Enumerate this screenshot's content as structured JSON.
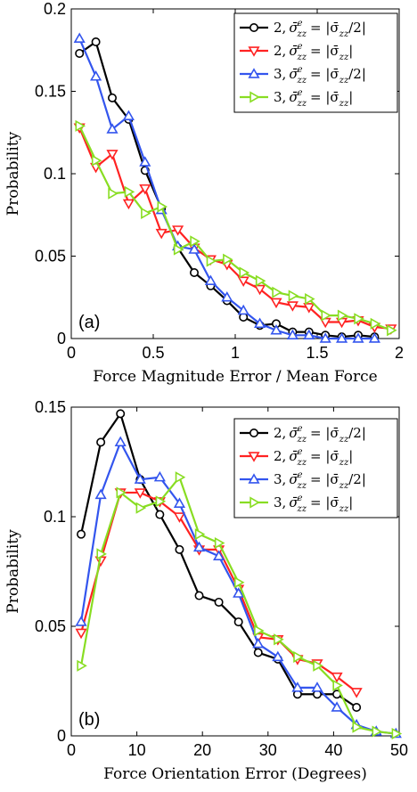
{
  "chart_data": [
    {
      "type": "line",
      "panel_label": "(a)",
      "xlabel": "Force Magnitude Error / Mean Force",
      "ylabel": "Probability",
      "xlim": [
        0,
        2
      ],
      "ylim": [
        0,
        0.2
      ],
      "xticks": [
        "0",
        "0.5",
        "1",
        "1.5",
        "2"
      ],
      "yticks": [
        "0",
        "0.05",
        "0.1",
        "0.15",
        "0.2"
      ],
      "legend_position": "top-right",
      "series": [
        {
          "legend_prefix": "2,",
          "legend_lhs": "σ̄",
          "legend_sup": "e",
          "legend_sub": "zz",
          "legend_eq": "= |σ̄",
          "legend_rhs_sub": "zz",
          "legend_tail": "/2|",
          "color": "#000000",
          "marker": "circle",
          "x": [
            0.05,
            0.15,
            0.25,
            0.35,
            0.45,
            0.55,
            0.65,
            0.75,
            0.85,
            0.95,
            1.05,
            1.15,
            1.25,
            1.35,
            1.45,
            1.55,
            1.65,
            1.75,
            1.85
          ],
          "values": [
            0.173,
            0.18,
            0.146,
            0.133,
            0.102,
            0.079,
            0.055,
            0.04,
            0.032,
            0.023,
            0.013,
            0.008,
            0.009,
            0.004,
            0.004,
            0.002,
            0.001,
            0.002,
            0.001
          ]
        },
        {
          "legend_prefix": "2,",
          "legend_lhs": "σ̄",
          "legend_sup": "e",
          "legend_sub": "zz",
          "legend_eq": "= |σ̄",
          "legend_rhs_sub": "zz",
          "legend_tail": "|",
          "color": "#ff2222",
          "marker": "triangle-down",
          "x": [
            0.05,
            0.15,
            0.25,
            0.35,
            0.45,
            0.55,
            0.65,
            0.75,
            0.85,
            0.95,
            1.05,
            1.15,
            1.25,
            1.35,
            1.45,
            1.55,
            1.65,
            1.75,
            1.85,
            1.95
          ],
          "values": [
            0.128,
            0.104,
            0.112,
            0.082,
            0.091,
            0.064,
            0.066,
            0.055,
            0.048,
            0.045,
            0.035,
            0.03,
            0.022,
            0.02,
            0.019,
            0.01,
            0.01,
            0.011,
            0.007,
            0.006
          ]
        },
        {
          "legend_prefix": "3,",
          "legend_lhs": "σ̄",
          "legend_sup": "e",
          "legend_sub": "zz",
          "legend_eq": "= |σ̄",
          "legend_rhs_sub": "zz",
          "legend_tail": "/2|",
          "color": "#3355ee",
          "marker": "triangle-up",
          "x": [
            0.05,
            0.15,
            0.25,
            0.35,
            0.45,
            0.55,
            0.65,
            0.75,
            0.85,
            0.95,
            1.05,
            1.15,
            1.25,
            1.35,
            1.45,
            1.55,
            1.65,
            1.75,
            1.85
          ],
          "values": [
            0.182,
            0.159,
            0.127,
            0.135,
            0.107,
            0.078,
            0.056,
            0.054,
            0.035,
            0.025,
            0.017,
            0.009,
            0.005,
            0.002,
            0.002,
            0.0,
            0.0,
            0.0,
            0.0
          ]
        },
        {
          "legend_prefix": "3,",
          "legend_lhs": "σ̄",
          "legend_sup": "e",
          "legend_sub": "zz",
          "legend_eq": "= |σ̄",
          "legend_rhs_sub": "zz",
          "legend_tail": "|",
          "color": "#88dd22",
          "marker": "triangle-right",
          "x": [
            0.05,
            0.15,
            0.25,
            0.35,
            0.45,
            0.55,
            0.65,
            0.75,
            0.85,
            0.95,
            1.05,
            1.15,
            1.25,
            1.35,
            1.45,
            1.55,
            1.65,
            1.75,
            1.85,
            1.95
          ],
          "values": [
            0.129,
            0.108,
            0.088,
            0.089,
            0.076,
            0.08,
            0.054,
            0.059,
            0.047,
            0.048,
            0.04,
            0.035,
            0.028,
            0.026,
            0.024,
            0.014,
            0.014,
            0.012,
            0.009,
            0.005
          ]
        }
      ]
    },
    {
      "type": "line",
      "panel_label": "(b)",
      "xlabel": "Force Orientation Error (Degrees)",
      "ylabel": "Probability",
      "xlim": [
        0,
        50
      ],
      "ylim": [
        0,
        0.15
      ],
      "xticks": [
        "0",
        "10",
        "20",
        "30",
        "40",
        "50"
      ],
      "yticks": [
        "0",
        "0.05",
        "0.1",
        "0.15"
      ],
      "legend_position": "top-right",
      "series": [
        {
          "legend_prefix": "2,",
          "legend_lhs": "σ̄",
          "legend_sup": "e",
          "legend_sub": "zz",
          "legend_eq": "= |σ̄",
          "legend_rhs_sub": "zz",
          "legend_tail": "/2|",
          "color": "#000000",
          "marker": "circle",
          "x": [
            1.5,
            4.5,
            7.5,
            10.5,
            13.5,
            16.5,
            19.5,
            22.5,
            25.5,
            28.5,
            31.5,
            34.5,
            37.5,
            40.5,
            43.5
          ],
          "values": [
            0.092,
            0.134,
            0.147,
            0.117,
            0.101,
            0.085,
            0.064,
            0.061,
            0.052,
            0.038,
            0.035,
            0.019,
            0.019,
            0.019,
            0.013
          ]
        },
        {
          "legend_prefix": "2,",
          "legend_lhs": "σ̄",
          "legend_sup": "e",
          "legend_sub": "zz",
          "legend_eq": "= |σ̄",
          "legend_rhs_sub": "zz",
          "legend_tail": "|",
          "color": "#ff2222",
          "marker": "triangle-down",
          "x": [
            1.5,
            4.5,
            7.5,
            10.5,
            13.5,
            16.5,
            19.5,
            22.5,
            25.5,
            28.5,
            31.5,
            34.5,
            37.5,
            40.5,
            43.5
          ],
          "values": [
            0.047,
            0.08,
            0.111,
            0.111,
            0.107,
            0.1,
            0.085,
            0.085,
            0.067,
            0.045,
            0.044,
            0.035,
            0.033,
            0.027,
            0.02
          ]
        },
        {
          "legend_prefix": "3,",
          "legend_lhs": "σ̄",
          "legend_sup": "e",
          "legend_sub": "zz",
          "legend_eq": "= |σ̄",
          "legend_rhs_sub": "zz",
          "legend_tail": "/2|",
          "color": "#3355ee",
          "marker": "triangle-up",
          "x": [
            1.5,
            4.5,
            7.5,
            10.5,
            13.5,
            16.5,
            19.5,
            22.5,
            25.5,
            28.5,
            31.5,
            34.5,
            37.5,
            40.5,
            43.5,
            46.5,
            49.5
          ],
          "values": [
            0.052,
            0.11,
            0.134,
            0.117,
            0.118,
            0.106,
            0.086,
            0.082,
            0.065,
            0.042,
            0.036,
            0.022,
            0.022,
            0.013,
            0.005,
            0.002,
            0.001
          ]
        },
        {
          "legend_prefix": "3,",
          "legend_lhs": "σ̄",
          "legend_sup": "e",
          "legend_sub": "zz",
          "legend_eq": "= |σ̄",
          "legend_rhs_sub": "zz",
          "legend_tail": "|",
          "color": "#88dd22",
          "marker": "triangle-right",
          "x": [
            1.5,
            4.5,
            7.5,
            10.5,
            13.5,
            16.5,
            19.5,
            22.5,
            25.5,
            28.5,
            31.5,
            34.5,
            37.5,
            40.5,
            43.5,
            46.5,
            49.5
          ],
          "values": [
            0.032,
            0.083,
            0.111,
            0.104,
            0.107,
            0.118,
            0.092,
            0.088,
            0.07,
            0.048,
            0.044,
            0.036,
            0.032,
            0.023,
            0.004,
            0.002,
            0.001
          ]
        }
      ]
    }
  ]
}
